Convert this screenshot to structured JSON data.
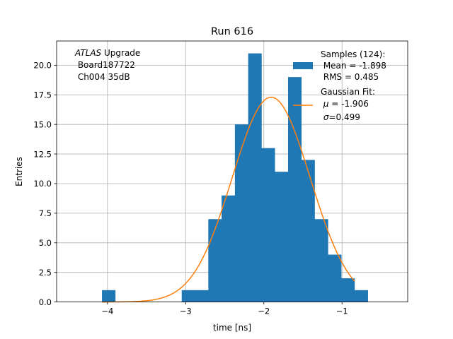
{
  "chart_data": {
    "type": "bar",
    "title": "Run 616",
    "xlabel": "time [ns]",
    "ylabel": "Entries",
    "xlim": [
      -4.65,
      -0.16
    ],
    "ylim": [
      0,
      22.05
    ],
    "grid": true,
    "xticks": [
      -4,
      -3,
      -2,
      -1
    ],
    "xtick_labels": [
      "−4",
      "−3",
      "−2",
      "−1"
    ],
    "yticks": [
      0.0,
      2.5,
      5.0,
      7.5,
      10.0,
      12.5,
      15.0,
      17.5,
      20.0
    ],
    "ytick_labels": [
      "0.0",
      "2.5",
      "5.0",
      "7.5",
      "10.0",
      "12.5",
      "15.0",
      "17.5",
      "20.0"
    ],
    "histogram": {
      "name": "Samples",
      "color": "#1f77b4",
      "bin_edges": [
        -4.07,
        -3.9,
        -3.73,
        -3.56,
        -3.39,
        -3.22,
        -3.05,
        -2.88,
        -2.71,
        -2.54,
        -2.37,
        -2.2,
        -2.03,
        -1.86,
        -1.69,
        -1.52,
        -1.35,
        -1.18,
        -1.01,
        -0.84,
        -0.67
      ],
      "counts": [
        1,
        0,
        0,
        0,
        0,
        0,
        1,
        1,
        7,
        9,
        15,
        21,
        13,
        11,
        19,
        12,
        7,
        4,
        2,
        1
      ]
    },
    "fit": {
      "name": "Gaussian Fit",
      "color": "#ff7f0e",
      "mu": -1.906,
      "sigma": 0.499,
      "amplitude": 17.3,
      "x_range": [
        -4.07,
        -0.84
      ]
    },
    "annotation": {
      "italic": "ATLAS",
      "line1_rest": " Upgrade",
      "line2": " Board187722",
      "line3": " Ch004 35dB"
    },
    "legend": {
      "position": "top-right",
      "samples_title": "Samples (124):",
      "samples_mean": " Mean = -1.898",
      "samples_rms": " RMS = 0.485",
      "fit_title": "Gaussian Fit:",
      "fit_mu_symbol": "μ",
      "fit_mu_rest": " = -1.906",
      "fit_sigma_symbol": "σ",
      "fit_sigma_rest": "=0.499"
    }
  }
}
